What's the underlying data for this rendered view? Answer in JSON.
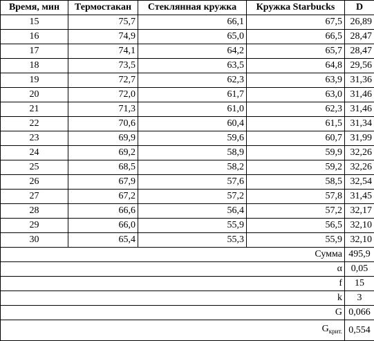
{
  "headers": {
    "time": "Время, мин",
    "thermos": "Термостакан",
    "glass": "Стеклянная кружка",
    "starbucks": "Кружка Starbucks",
    "d": "D"
  },
  "rows": [
    {
      "time": "15",
      "thermos": "75,7",
      "glass": "66,1",
      "starbucks": "67,5",
      "d": "26,89"
    },
    {
      "time": "16",
      "thermos": "74,9",
      "glass": "65,0",
      "starbucks": "66,5",
      "d": "28,47"
    },
    {
      "time": "17",
      "thermos": "74,1",
      "glass": "64,2",
      "starbucks": "65,7",
      "d": "28,47"
    },
    {
      "time": "18",
      "thermos": "73,5",
      "glass": "63,5",
      "starbucks": "64,8",
      "d": "29,56"
    },
    {
      "time": "19",
      "thermos": "72,7",
      "glass": "62,3",
      "starbucks": "63,9",
      "d": "31,36"
    },
    {
      "time": "20",
      "thermos": "72,0",
      "glass": "61,7",
      "starbucks": "63,0",
      "d": "31,46"
    },
    {
      "time": "21",
      "thermos": "71,3",
      "glass": "61,0",
      "starbucks": "62,3",
      "d": "31,46"
    },
    {
      "time": "22",
      "thermos": "70,6",
      "glass": "60,4",
      "starbucks": "61,5",
      "d": "31,34"
    },
    {
      "time": "23",
      "thermos": "69,9",
      "glass": "59,6",
      "starbucks": "60,7",
      "d": "31,99"
    },
    {
      "time": "24",
      "thermos": "69,2",
      "glass": "58,9",
      "starbucks": "59,9",
      "d": "32,26"
    },
    {
      "time": "25",
      "thermos": "68,5",
      "glass": "58,2",
      "starbucks": "59,2",
      "d": "32,26"
    },
    {
      "time": "26",
      "thermos": "67,9",
      "glass": "57,6",
      "starbucks": "58,5",
      "d": "32,54"
    },
    {
      "time": "27",
      "thermos": "67,2",
      "glass": "57,2",
      "starbucks": "57,8",
      "d": "31,45"
    },
    {
      "time": "28",
      "thermos": "66,6",
      "glass": "56,4",
      "starbucks": "57,2",
      "d": "32,17"
    },
    {
      "time": "29",
      "thermos": "66,0",
      "glass": "55,9",
      "starbucks": "56,5",
      "d": "32,10"
    },
    {
      "time": "30",
      "thermos": "65,4",
      "glass": "55,3",
      "starbucks": "55,9",
      "d": "32,10"
    }
  ],
  "summary": [
    {
      "label": "Сумма",
      "value": "495,9"
    },
    {
      "label": "α",
      "value": "0,05"
    },
    {
      "label": "f",
      "value": "15"
    },
    {
      "label": "k",
      "value": "3"
    },
    {
      "label": "G",
      "value": "0,066"
    }
  ],
  "gcrit": {
    "label_main": "G",
    "label_sub": "крит.",
    "value": "0,554"
  }
}
